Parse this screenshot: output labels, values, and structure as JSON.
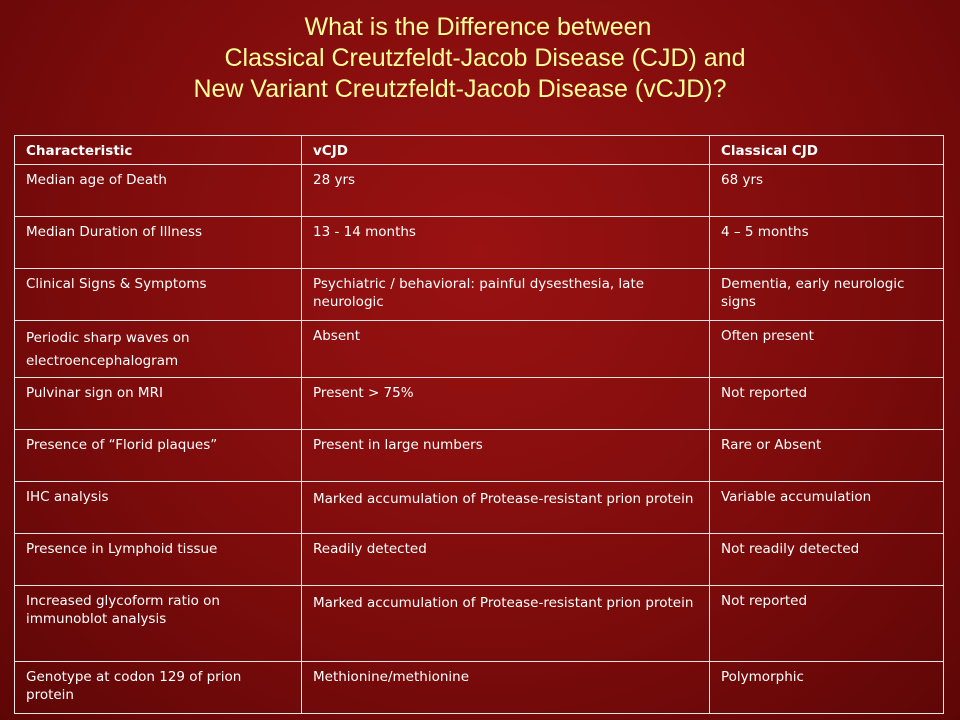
{
  "title": {
    "line1": "What is the Difference between",
    "line2": "Classical Creutzfeldt-Jacob Disease (CJD) and",
    "line3": "New Variant Creutzfeldt-Jacob Disease (vCJD)?"
  },
  "table": {
    "headers": [
      "Characteristic",
      "vCJD",
      "Classical CJD"
    ],
    "rows": [
      [
        "Median age of Death",
        "28 yrs",
        "68 yrs"
      ],
      [
        "Median Duration of Illness",
        "13 - 14 months",
        "4 – 5 months"
      ],
      [
        "Clinical Signs & Symptoms",
        "Psychiatric / behavioral: painful dysesthesia, late neurologic",
        "Dementia, early neurologic signs"
      ],
      [
        "Periodic sharp waves on electroencephalogram",
        "Absent",
        "Often present"
      ],
      [
        "Pulvinar sign on MRI",
        "Present > 75%",
        "Not reported"
      ],
      [
        "Presence of “Florid plaques”",
        "Present in large numbers",
        "Rare or Absent"
      ],
      [
        "IHC analysis",
        "Marked accumulation of Protease-resistant prion protein",
        "Variable accumulation"
      ],
      [
        "Presence in Lymphoid tissue",
        "Readily detected",
        "Not readily detected"
      ],
      [
        "Increased glycoform ratio on immunoblot analysis",
        "Marked accumulation of Protease-resistant prion protein",
        "Not reported"
      ],
      [
        "Genotype at codon 129 of prion protein",
        "Methionine/methionine",
        "Polymorphic"
      ]
    ]
  }
}
